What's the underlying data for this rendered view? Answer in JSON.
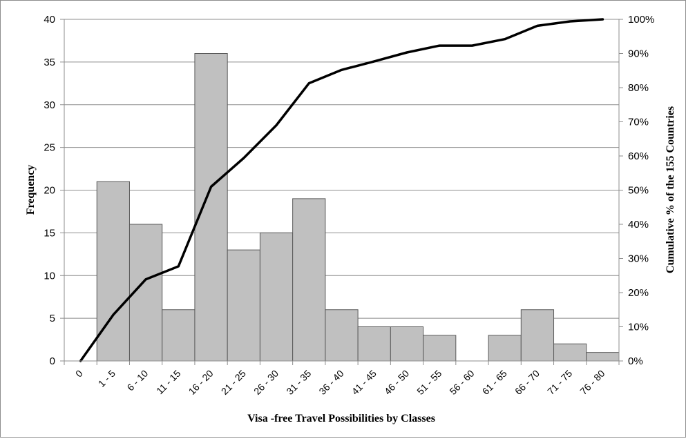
{
  "chart_data": {
    "type": "bar",
    "categories": [
      "0",
      "1 - 5",
      "6 - 10",
      "11 - 15",
      "16 - 20",
      "21 - 25",
      "26 - 30",
      "31 - 35",
      "36 - 40",
      "41 - 45",
      "46 - 50",
      "51 - 55",
      "56 - 60",
      "61 - 65",
      "66 - 70",
      "71 - 75",
      "76 - 80"
    ],
    "series": [
      {
        "name": "",
        "type": "bar",
        "axis": "left",
        "values": [
          0,
          21,
          16,
          6,
          36,
          13,
          15,
          19,
          6,
          4,
          4,
          3,
          0,
          3,
          6,
          2,
          1
        ]
      },
      {
        "name": "",
        "type": "line",
        "axis": "right",
        "values": [
          0,
          13.5,
          23.9,
          27.7,
          51.0,
          59.4,
          69.0,
          81.3,
          85.2,
          87.7,
          90.3,
          92.3,
          92.3,
          94.2,
          98.1,
          99.4,
          100
        ]
      }
    ],
    "xlabel": "Visa -free Travel Possibilities by Classes",
    "ylabel": "Frequency",
    "y2label": "Cumulative % of the 155 Countries",
    "ylim": [
      0,
      40
    ],
    "y2lim": [
      0,
      100
    ],
    "yticks": [
      "0",
      "5",
      "10",
      "15",
      "20",
      "25",
      "30",
      "35",
      "40"
    ],
    "y2ticks": [
      "0%",
      "10%",
      "20%",
      "30%",
      "40%",
      "50%",
      "60%",
      "70%",
      "80%",
      "90%",
      "100%"
    ],
    "grid": true,
    "legend": "none",
    "colors": {
      "bar_fill": "#c0c0c0",
      "bar_stroke": "#595959",
      "line": "#000000",
      "grid": "#8c8c8c",
      "frame": "#8c8c8c"
    }
  }
}
